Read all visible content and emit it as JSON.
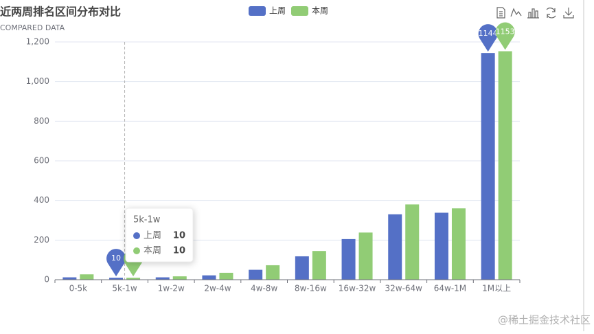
{
  "chart_data": {
    "type": "bar",
    "title": "近两周排名区间分布对比",
    "subtitle": "COMPARED DATA",
    "categories": [
      "0-5k",
      "5k-1w",
      "1w-2w",
      "2w-4w",
      "4w-8w",
      "8w-16w",
      "16w-32w",
      "32w-64w",
      "64w-1M",
      "1M以上"
    ],
    "series": [
      {
        "name": "上周",
        "color": "#5470c6",
        "values": [
          12,
          10,
          12,
          22,
          50,
          118,
          205,
          330,
          338,
          1144
        ]
      },
      {
        "name": "本周",
        "color": "#91cc75",
        "values": [
          27,
          10,
          17,
          35,
          73,
          145,
          238,
          380,
          360,
          1153
        ]
      }
    ],
    "ylim": [
      0,
      1200
    ],
    "yticks": [
      0,
      200,
      400,
      600,
      800,
      {
        "value": 1000,
        "label": "1,000"
      },
      {
        "value": 1200,
        "label": "1,200"
      }
    ],
    "grid": true,
    "legend": "top",
    "watermark": "@稀土掘金技术社区"
  }
}
